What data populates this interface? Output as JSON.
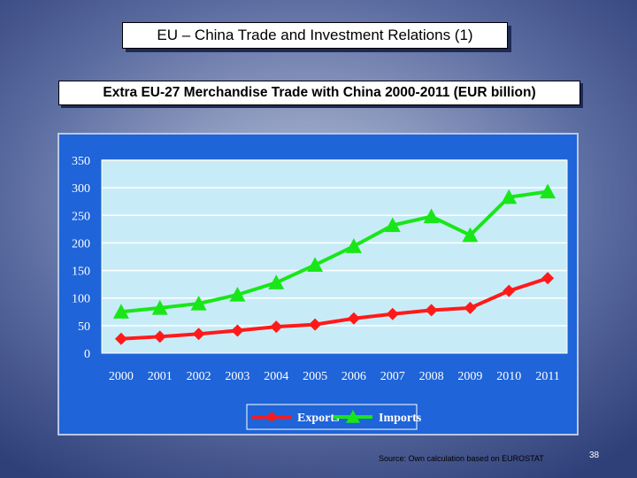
{
  "slide": {
    "title": "EU – China Trade and Investment Relations (1)",
    "source": "Source: Own calculation based on EUROSTAT",
    "page_number": "38"
  },
  "colors": {
    "plot_background": "#c8ecf7",
    "frame_background": "#1f64d8",
    "exports": "#ff1a1a",
    "imports": "#19e619"
  },
  "chart_data": {
    "type": "line",
    "title": "Extra EU-27 Merchandise Trade with China 2000-2011 (EUR billion)",
    "xlabel": "",
    "ylabel": "",
    "x": [
      "2000",
      "2001",
      "2002",
      "2003",
      "2004",
      "2005",
      "2006",
      "2007",
      "2008",
      "2009",
      "2010",
      "2011"
    ],
    "ylim": [
      0,
      350
    ],
    "yticks": [
      0,
      50,
      100,
      150,
      200,
      250,
      300,
      350
    ],
    "grid": true,
    "legend_position": "bottom",
    "series": [
      {
        "name": "Exports",
        "marker": "diamond",
        "values": [
          26,
          30,
          35,
          41,
          48,
          52,
          63,
          71,
          78,
          82,
          113,
          136
        ]
      },
      {
        "name": "Imports",
        "marker": "triangle",
        "values": [
          75,
          82,
          90,
          106,
          128,
          160,
          194,
          232,
          248,
          214,
          283,
          293
        ]
      }
    ]
  }
}
